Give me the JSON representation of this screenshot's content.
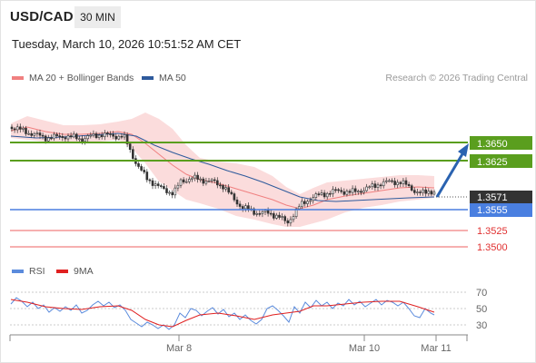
{
  "header": {
    "pair": "USD/CAD",
    "timeframe": "30 MIN",
    "datetime": "Tuesday, March 10, 2026 10:51:52 AM CET"
  },
  "legend": {
    "ma20_label": "MA 20 + Bollinger Bands",
    "ma50_label": "MA 50",
    "credit": "Research © 2026 Trading Central",
    "rsi_label": "RSI",
    "ma9_label": "9MA"
  },
  "colors": {
    "ma20": "#f08080",
    "ma50": "#2e5a9c",
    "band_fill": "#fbdcdc",
    "resistance": "#5a9e1e",
    "support": "#4a7fe0",
    "target": "#f08080",
    "rsi": "#5b8bdc",
    "rsi_ma": "#e02020",
    "arrow": "#2a62b0",
    "last_price_bg": "#333333",
    "candle": "#333333"
  },
  "price_levels": {
    "resistance_1": "1.3650",
    "resistance_2": "1.3625",
    "last": "1.3571",
    "support_1": "1.3555",
    "support_2": "1.3525",
    "support_3": "1.3500"
  },
  "rsi_axis": [
    "70",
    "50",
    "30"
  ],
  "x_axis": [
    "Mar 8",
    "Mar 10",
    "Mar 11"
  ]
}
